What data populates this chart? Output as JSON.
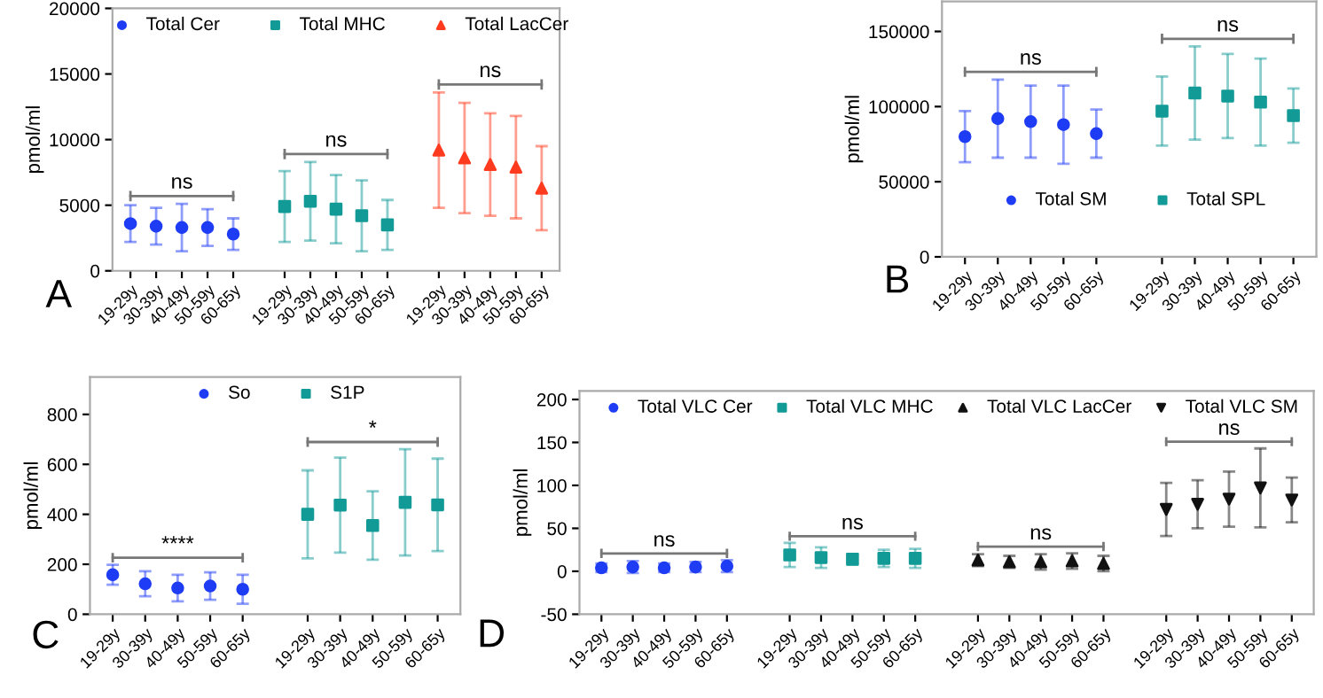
{
  "chart_data": [
    {
      "type": "scatter",
      "ylabel": "pmol/ml",
      "legend": "top",
      "grid": false,
      "categories": [
        "19-29y",
        "30-39y",
        "40-49y",
        "50-59y",
        "60-65y",
        null,
        "19-29y",
        "30-39y",
        "40-49y",
        "50-59y",
        "60-65y",
        null,
        "19-29y",
        "30-39y",
        "40-49y",
        "50-59y",
        "60-65y"
      ],
      "ylim": [
        0,
        20000
      ],
      "yticks": [
        0,
        5000,
        10000,
        15000,
        20000
      ],
      "annotations": [
        "A",
        "ns",
        "ns",
        "ns"
      ],
      "series": [
        {
          "name": "Total Cer",
          "color": "#1f3cf5",
          "marker": "circle",
          "values": [
            3600,
            3400,
            3300,
            3300,
            2800,
            null,
            null,
            null,
            null,
            null,
            null,
            null,
            null,
            null,
            null,
            null,
            null
          ],
          "errors": [
            1400,
            1400,
            1800,
            1400,
            1200,
            null,
            null,
            null,
            null,
            null,
            null,
            null,
            null,
            null,
            null,
            null,
            null
          ]
        },
        {
          "name": "Total MHC",
          "color": "#129a97",
          "marker": "square",
          "values": [
            null,
            null,
            null,
            null,
            null,
            null,
            4900,
            5300,
            4700,
            4200,
            3500,
            null,
            null,
            null,
            null,
            null,
            null
          ],
          "errors": [
            null,
            null,
            null,
            null,
            null,
            null,
            2700,
            3000,
            2600,
            2700,
            1900,
            null,
            null,
            null,
            null,
            null,
            null
          ]
        },
        {
          "name": "Total LacCer",
          "color": "#ff3b1f",
          "marker": "triangle",
          "values": [
            null,
            null,
            null,
            null,
            null,
            null,
            null,
            null,
            null,
            null,
            null,
            null,
            9200,
            8600,
            8100,
            7900,
            6300
          ],
          "errors": [
            null,
            null,
            null,
            null,
            null,
            null,
            null,
            null,
            null,
            null,
            null,
            null,
            4400,
            4200,
            3900,
            3900,
            3200
          ]
        }
      ]
    },
    {
      "type": "scatter",
      "ylabel": "pmol/ml",
      "legend": "bottom",
      "grid": false,
      "categories": [
        "19-29y",
        "30-39y",
        "40-49y",
        "50-59y",
        "60-65y",
        null,
        "19-29y",
        "30-39y",
        "40-49y",
        "50-59y",
        "60-65y"
      ],
      "ylim": [
        0,
        170000
      ],
      "yticks": [
        0,
        50000,
        100000,
        150000
      ],
      "annotations": [
        "B",
        "ns",
        "ns"
      ],
      "series": [
        {
          "name": "Total SM",
          "color": "#1f3cf5",
          "marker": "circle",
          "values": [
            80000,
            92000,
            90000,
            88000,
            82000,
            null,
            null,
            null,
            null,
            null,
            null
          ],
          "errors": [
            17000,
            26000,
            24000,
            26000,
            16000,
            null,
            null,
            null,
            null,
            null,
            null
          ]
        },
        {
          "name": "Total SPL",
          "color": "#129a97",
          "marker": "square",
          "values": [
            null,
            null,
            null,
            null,
            null,
            null,
            97000,
            109000,
            107000,
            103000,
            94000
          ],
          "errors": [
            null,
            null,
            null,
            null,
            null,
            null,
            23000,
            31000,
            28000,
            29000,
            18000
          ]
        }
      ]
    },
    {
      "type": "scatter",
      "ylabel": "pmol/ml",
      "legend": "top",
      "grid": false,
      "categories": [
        "19-29y",
        "30-39y",
        "40-49y",
        "50-59y",
        "60-65y",
        null,
        "19-29y",
        "30-39y",
        "40-49y",
        "50-59y",
        "60-65y"
      ],
      "ylim": [
        0,
        950
      ],
      "yticks": [
        0,
        200,
        400,
        600,
        800
      ],
      "annotations": [
        "C",
        "****",
        "*"
      ],
      "series": [
        {
          "name": "So",
          "color": "#1f3cf5",
          "marker": "circle",
          "values": [
            158,
            122,
            105,
            113,
            100,
            null,
            null,
            null,
            null,
            null,
            null
          ],
          "errors": [
            40,
            50,
            53,
            55,
            58,
            null,
            null,
            null,
            null,
            null,
            null
          ]
        },
        {
          "name": "S1P",
          "color": "#129a97",
          "marker": "square",
          "values": [
            null,
            null,
            null,
            null,
            null,
            null,
            400,
            437,
            355,
            448,
            438
          ],
          "errors": [
            null,
            null,
            null,
            null,
            null,
            null,
            176,
            190,
            137,
            213,
            185
          ]
        }
      ]
    },
    {
      "type": "scatter",
      "ylabel": "pmol/ml",
      "legend": "top",
      "grid": false,
      "categories": [
        "19-29y",
        "30-39y",
        "40-49y",
        "50-59y",
        "60-65y",
        null,
        "19-29y",
        "30-39y",
        "40-49y",
        "50-59y",
        "60-65y",
        null,
        "19-29y",
        "30-39y",
        "40-49y",
        "50-59y",
        "60-65y",
        null,
        "19-29y",
        "30-39y",
        "40-49y",
        "50-59y",
        "60-65y"
      ],
      "ylim": [
        -50,
        210
      ],
      "yticks": [
        -50,
        0,
        50,
        100,
        150,
        200
      ],
      "annotations": [
        "D",
        "ns",
        "ns",
        "ns",
        "ns"
      ],
      "series": [
        {
          "name": "Total VLC Cer",
          "color": "#1f3cf5",
          "marker": "circle",
          "values": [
            4,
            5,
            4,
            5,
            6,
            null,
            null,
            null,
            null,
            null,
            null,
            null,
            null,
            null,
            null,
            null,
            null,
            null,
            null,
            null,
            null,
            null,
            null
          ],
          "errors": [
            5,
            7,
            5,
            6,
            7,
            null,
            null,
            null,
            null,
            null,
            null,
            null,
            null,
            null,
            null,
            null,
            null,
            null,
            null,
            null,
            null,
            null,
            null
          ]
        },
        {
          "name": "Total VLC MHC",
          "color": "#129a97",
          "marker": "square",
          "values": [
            null,
            null,
            null,
            null,
            null,
            null,
            19,
            16,
            14,
            15,
            15,
            null,
            null,
            null,
            null,
            null,
            null,
            null,
            null,
            null,
            null,
            null,
            null
          ],
          "errors": [
            null,
            null,
            null,
            null,
            null,
            null,
            14,
            12,
            6,
            10,
            11,
            null,
            null,
            null,
            null,
            null,
            null,
            null,
            null,
            null,
            null,
            null,
            null
          ]
        },
        {
          "name": "Total VLC LacCer",
          "color": "#111111",
          "marker": "triangle",
          "values": [
            null,
            null,
            null,
            null,
            null,
            null,
            null,
            null,
            null,
            null,
            null,
            null,
            13,
            11,
            11,
            12,
            9,
            null,
            null,
            null,
            null,
            null,
            null
          ],
          "errors": [
            null,
            null,
            null,
            null,
            null,
            null,
            null,
            null,
            null,
            null,
            null,
            null,
            7,
            7,
            9,
            9,
            9,
            null,
            null,
            null,
            null,
            null,
            null
          ]
        },
        {
          "name": "Total VLC SM",
          "color": "#111111",
          "marker": "triangle_down",
          "values": [
            null,
            null,
            null,
            null,
            null,
            null,
            null,
            null,
            null,
            null,
            null,
            null,
            null,
            null,
            null,
            null,
            null,
            null,
            72,
            78,
            84,
            97,
            83
          ],
          "errors": [
            null,
            null,
            null,
            null,
            null,
            null,
            null,
            null,
            null,
            null,
            null,
            null,
            null,
            null,
            null,
            null,
            null,
            null,
            31,
            28,
            32,
            46,
            26
          ]
        }
      ]
    }
  ]
}
